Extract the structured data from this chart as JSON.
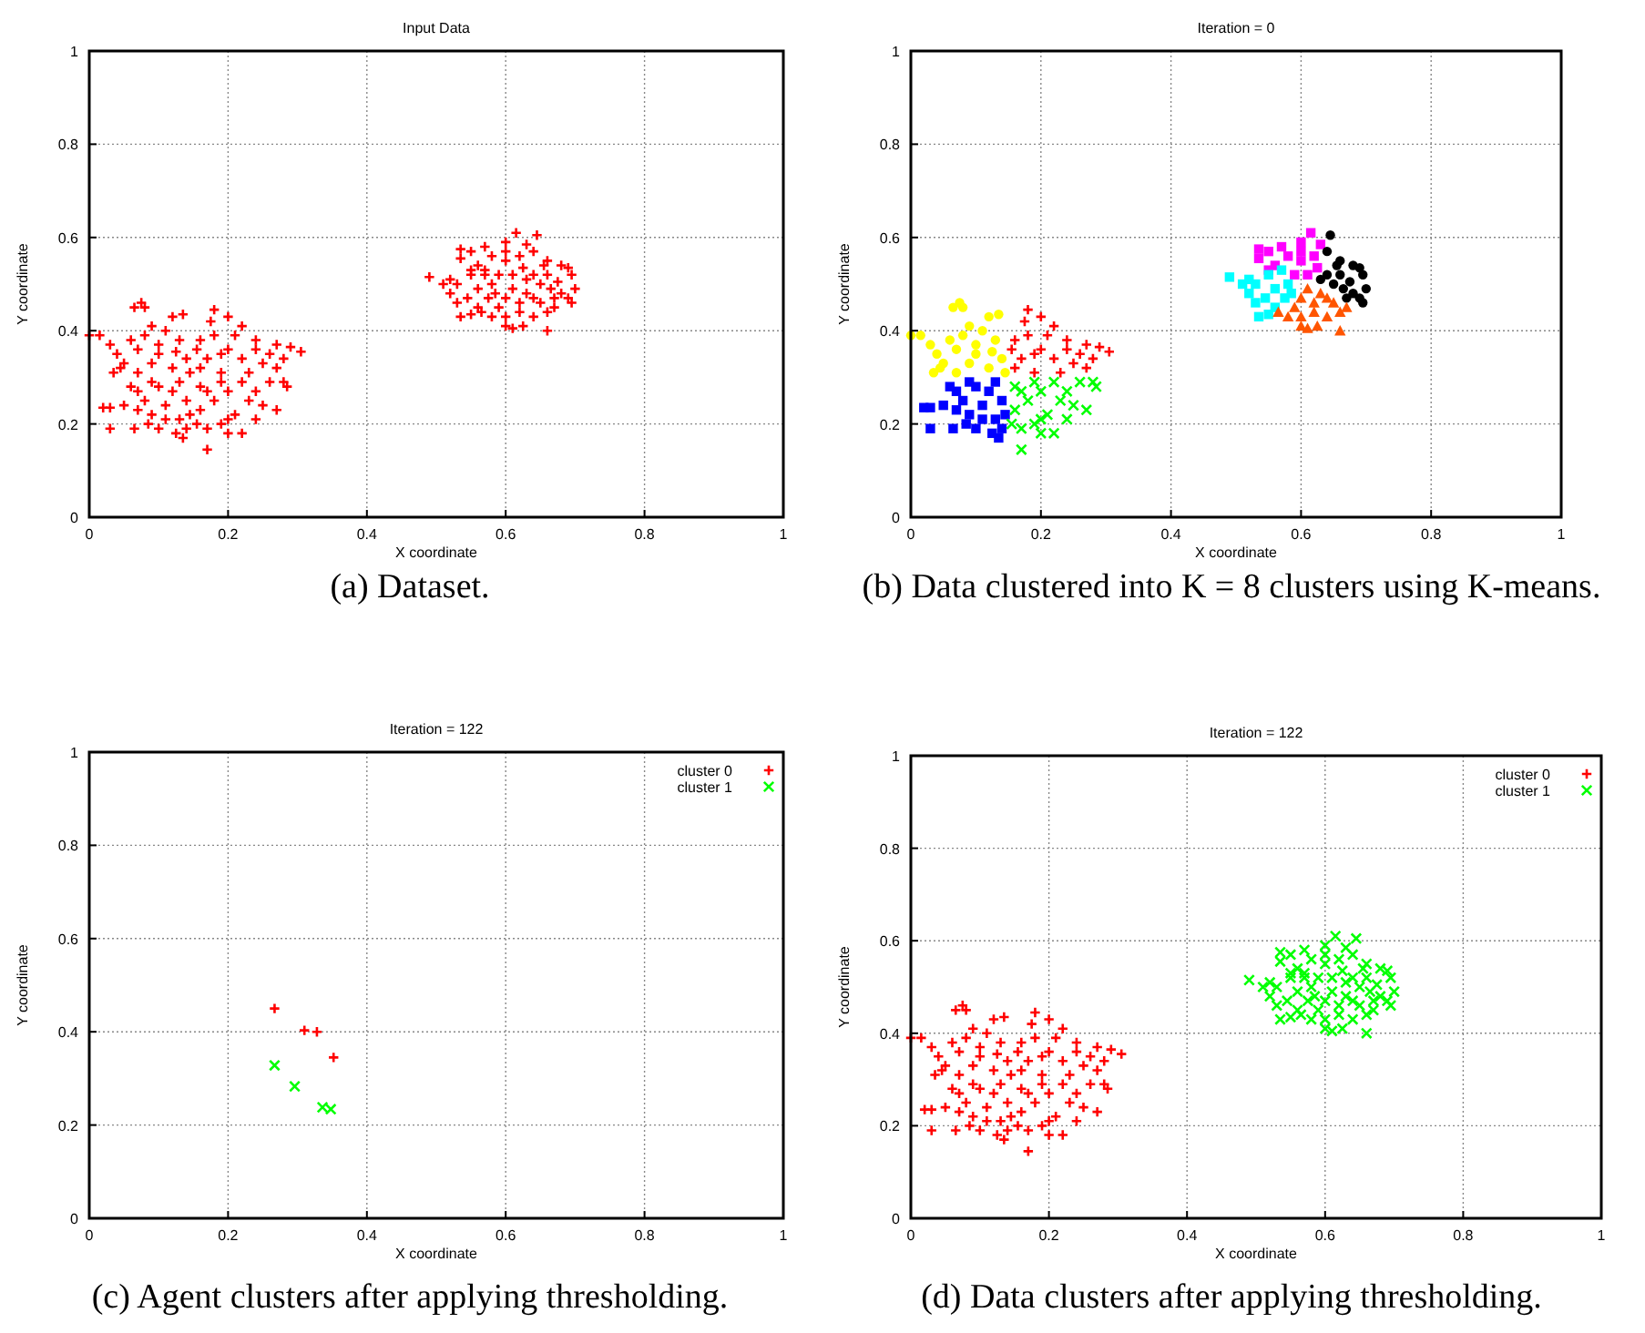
{
  "chart_data": [
    {
      "type": "scatter",
      "title": "Input Data",
      "xlabel": "X coordinate",
      "ylabel": "Y coordinate",
      "annotations": [
        "(a) Dataset."
      ],
      "xlim": [
        0,
        1
      ],
      "ylim": [
        0,
        1
      ],
      "xticks": [
        0,
        0.2,
        0.4,
        0.6,
        0.8,
        1
      ],
      "yticks": [
        0,
        0.2,
        0.4,
        0.6,
        0.8,
        1
      ],
      "grid": true,
      "marker": "plus",
      "color": "#ff0000",
      "x": [
        0.0,
        0.015,
        0.03,
        0.035,
        0.05,
        0.065,
        0.075,
        0.08,
        0.09,
        0.12,
        0.135,
        0.11,
        0.06,
        0.04,
        0.07,
        0.1,
        0.13,
        0.14,
        0.12,
        0.09,
        0.07,
        0.1,
        0.145,
        0.125,
        0.08,
        0.045,
        0.18,
        0.2,
        0.22,
        0.24,
        0.27,
        0.29,
        0.305,
        0.26,
        0.25,
        0.22,
        0.2,
        0.18,
        0.17,
        0.16,
        0.19,
        0.23,
        0.28,
        0.16,
        0.21,
        0.175,
        0.24,
        0.19,
        0.155,
        0.27,
        0.02,
        0.03,
        0.03,
        0.065,
        0.085,
        0.1,
        0.125,
        0.135,
        0.14,
        0.05,
        0.07,
        0.06,
        0.09,
        0.11,
        0.13,
        0.08,
        0.1,
        0.12,
        0.14,
        0.145,
        0.07,
        0.09,
        0.13,
        0.11,
        0.17,
        0.2,
        0.22,
        0.27,
        0.28,
        0.285,
        0.26,
        0.24,
        0.25,
        0.23,
        0.21,
        0.19,
        0.17,
        0.16,
        0.18,
        0.2,
        0.22,
        0.16,
        0.19,
        0.2,
        0.155,
        0.24,
        0.17,
        0.535,
        0.535,
        0.55,
        0.57,
        0.6,
        0.615,
        0.63,
        0.58,
        0.6,
        0.56,
        0.62,
        0.59,
        0.61,
        0.57,
        0.55,
        0.6,
        0.625,
        0.645,
        0.64,
        0.66,
        0.68,
        0.69,
        0.695,
        0.7,
        0.69,
        0.695,
        0.68,
        0.665,
        0.65,
        0.64,
        0.63,
        0.66,
        0.67,
        0.655,
        0.675,
        0.49,
        0.51,
        0.52,
        0.53,
        0.535,
        0.55,
        0.53,
        0.55,
        0.57,
        0.56,
        0.575,
        0.58,
        0.545,
        0.52,
        0.585,
        0.56,
        0.565,
        0.58,
        0.6,
        0.61,
        0.625,
        0.66,
        0.66,
        0.67,
        0.65,
        0.63,
        0.61,
        0.6,
        0.59,
        0.62,
        0.64,
        0.6,
        0.62,
        0.64
      ],
      "values": [
        0.39,
        0.39,
        0.37,
        0.31,
        0.33,
        0.45,
        0.46,
        0.45,
        0.41,
        0.43,
        0.435,
        0.4,
        0.38,
        0.35,
        0.36,
        0.37,
        0.38,
        0.34,
        0.32,
        0.33,
        0.31,
        0.35,
        0.31,
        0.355,
        0.39,
        0.32,
        0.445,
        0.43,
        0.41,
        0.38,
        0.37,
        0.365,
        0.355,
        0.35,
        0.33,
        0.34,
        0.36,
        0.39,
        0.34,
        0.32,
        0.31,
        0.31,
        0.34,
        0.38,
        0.39,
        0.42,
        0.36,
        0.35,
        0.36,
        0.32,
        0.235,
        0.235,
        0.19,
        0.19,
        0.2,
        0.19,
        0.18,
        0.17,
        0.19,
        0.24,
        0.27,
        0.28,
        0.22,
        0.24,
        0.21,
        0.25,
        0.28,
        0.27,
        0.25,
        0.22,
        0.23,
        0.29,
        0.29,
        0.21,
        0.145,
        0.18,
        0.18,
        0.23,
        0.29,
        0.28,
        0.29,
        0.27,
        0.24,
        0.25,
        0.22,
        0.2,
        0.19,
        0.23,
        0.25,
        0.27,
        0.29,
        0.28,
        0.29,
        0.21,
        0.2,
        0.21,
        0.27,
        0.575,
        0.555,
        0.57,
        0.58,
        0.59,
        0.61,
        0.585,
        0.56,
        0.55,
        0.54,
        0.56,
        0.52,
        0.52,
        0.52,
        0.53,
        0.57,
        0.535,
        0.605,
        0.57,
        0.55,
        0.54,
        0.535,
        0.52,
        0.49,
        0.47,
        0.46,
        0.48,
        0.49,
        0.5,
        0.52,
        0.51,
        0.52,
        0.47,
        0.54,
        0.505,
        0.515,
        0.5,
        0.48,
        0.46,
        0.43,
        0.435,
        0.5,
        0.52,
        0.53,
        0.49,
        0.47,
        0.5,
        0.47,
        0.51,
        0.48,
        0.45,
        0.44,
        0.43,
        0.41,
        0.405,
        0.41,
        0.4,
        0.44,
        0.45,
        0.46,
        0.48,
        0.49,
        0.47,
        0.45,
        0.44,
        0.43,
        0.43,
        0.46,
        0.47
      ]
    },
    {
      "type": "scatter",
      "title": "Iteration = 0",
      "xlabel": "X coordinate",
      "ylabel": "Y coordinate",
      "annotations": [
        "(b) Data clustered into K = 8 clusters using K-means."
      ],
      "xlim": [
        0,
        1
      ],
      "ylim": [
        0,
        1
      ],
      "xticks": [
        0,
        0.2,
        0.4,
        0.6,
        0.8,
        1
      ],
      "yticks": [
        0,
        0.2,
        0.4,
        0.6,
        0.8,
        1
      ],
      "grid": true,
      "series": [
        {
          "color": "#ffff00",
          "marker": "circle",
          "x": [
            0.0,
            0.015,
            0.03,
            0.035,
            0.05,
            0.065,
            0.075,
            0.08,
            0.09,
            0.12,
            0.135,
            0.11,
            0.06,
            0.04,
            0.07,
            0.1,
            0.13,
            0.14,
            0.12,
            0.09,
            0.07,
            0.1,
            0.145,
            0.125,
            0.08,
            0.045
          ],
          "values": [
            0.39,
            0.39,
            0.37,
            0.31,
            0.33,
            0.45,
            0.46,
            0.45,
            0.41,
            0.43,
            0.435,
            0.4,
            0.38,
            0.35,
            0.36,
            0.37,
            0.38,
            0.34,
            0.32,
            0.33,
            0.31,
            0.35,
            0.31,
            0.355,
            0.39,
            0.32
          ]
        },
        {
          "color": "#ff0000",
          "marker": "plus",
          "x": [
            0.18,
            0.2,
            0.22,
            0.24,
            0.27,
            0.29,
            0.305,
            0.26,
            0.25,
            0.22,
            0.2,
            0.18,
            0.17,
            0.16,
            0.19,
            0.23,
            0.28,
            0.16,
            0.21,
            0.175,
            0.24,
            0.19,
            0.155,
            0.27
          ],
          "values": [
            0.445,
            0.43,
            0.41,
            0.38,
            0.37,
            0.365,
            0.355,
            0.35,
            0.33,
            0.34,
            0.36,
            0.39,
            0.34,
            0.32,
            0.31,
            0.31,
            0.34,
            0.38,
            0.39,
            0.42,
            0.36,
            0.35,
            0.36,
            0.32
          ]
        },
        {
          "color": "#0000ff",
          "marker": "square",
          "x": [
            0.02,
            0.03,
            0.03,
            0.065,
            0.085,
            0.1,
            0.125,
            0.135,
            0.14,
            0.05,
            0.07,
            0.06,
            0.09,
            0.11,
            0.13,
            0.08,
            0.1,
            0.12,
            0.14,
            0.145,
            0.07,
            0.09,
            0.13,
            0.11
          ],
          "values": [
            0.235,
            0.235,
            0.19,
            0.19,
            0.2,
            0.19,
            0.18,
            0.17,
            0.19,
            0.24,
            0.27,
            0.28,
            0.22,
            0.24,
            0.21,
            0.25,
            0.28,
            0.27,
            0.25,
            0.22,
            0.23,
            0.29,
            0.29,
            0.21
          ]
        },
        {
          "color": "#00ff00",
          "marker": "cross",
          "x": [
            0.17,
            0.2,
            0.22,
            0.27,
            0.28,
            0.285,
            0.26,
            0.24,
            0.25,
            0.23,
            0.21,
            0.19,
            0.17,
            0.16,
            0.18,
            0.2,
            0.22,
            0.16,
            0.19,
            0.2,
            0.155,
            0.24,
            0.17
          ],
          "values": [
            0.145,
            0.18,
            0.18,
            0.23,
            0.29,
            0.28,
            0.29,
            0.27,
            0.24,
            0.25,
            0.22,
            0.2,
            0.19,
            0.23,
            0.25,
            0.27,
            0.29,
            0.28,
            0.29,
            0.21,
            0.2,
            0.21,
            0.27
          ]
        },
        {
          "color": "#ff00ff",
          "marker": "square",
          "x": [
            0.535,
            0.535,
            0.55,
            0.57,
            0.6,
            0.615,
            0.63,
            0.58,
            0.6,
            0.56,
            0.62,
            0.59,
            0.61,
            0.55,
            0.6,
            0.625
          ],
          "values": [
            0.575,
            0.555,
            0.57,
            0.58,
            0.59,
            0.61,
            0.585,
            0.56,
            0.55,
            0.54,
            0.56,
            0.52,
            0.52,
            0.53,
            0.57,
            0.535
          ]
        },
        {
          "color": "#000000",
          "marker": "circle",
          "x": [
            0.645,
            0.64,
            0.66,
            0.68,
            0.69,
            0.695,
            0.7,
            0.69,
            0.695,
            0.68,
            0.665,
            0.65,
            0.64,
            0.63,
            0.66,
            0.67,
            0.655,
            0.675
          ],
          "values": [
            0.605,
            0.57,
            0.55,
            0.54,
            0.535,
            0.52,
            0.49,
            0.47,
            0.46,
            0.48,
            0.49,
            0.5,
            0.52,
            0.51,
            0.52,
            0.47,
            0.54,
            0.505
          ]
        },
        {
          "color": "#00ffff",
          "marker": "square",
          "x": [
            0.49,
            0.51,
            0.52,
            0.53,
            0.535,
            0.55,
            0.53,
            0.55,
            0.57,
            0.56,
            0.575,
            0.58,
            0.545,
            0.52,
            0.585,
            0.56
          ],
          "values": [
            0.515,
            0.5,
            0.48,
            0.46,
            0.43,
            0.435,
            0.5,
            0.52,
            0.53,
            0.49,
            0.47,
            0.5,
            0.47,
            0.51,
            0.48,
            0.45
          ]
        },
        {
          "color": "#ff5500",
          "marker": "triangle",
          "x": [
            0.565,
            0.58,
            0.6,
            0.61,
            0.625,
            0.66,
            0.66,
            0.67,
            0.65,
            0.63,
            0.61,
            0.6,
            0.59,
            0.62,
            0.64,
            0.6,
            0.62,
            0.64
          ],
          "values": [
            0.44,
            0.43,
            0.41,
            0.405,
            0.41,
            0.4,
            0.44,
            0.45,
            0.46,
            0.48,
            0.49,
            0.47,
            0.45,
            0.44,
            0.43,
            0.43,
            0.46,
            0.47
          ]
        }
      ]
    },
    {
      "type": "scatter",
      "title": "Iteration = 122",
      "xlabel": "X coordinate",
      "ylabel": "Y coordinate",
      "annotations": [
        "(c) Agent clusters after applying thresholding."
      ],
      "xlim": [
        0,
        1
      ],
      "ylim": [
        0,
        1
      ],
      "xticks": [
        0,
        0.2,
        0.4,
        0.6,
        0.8,
        1
      ],
      "yticks": [
        0,
        0.2,
        0.4,
        0.6,
        0.8,
        1
      ],
      "grid": true,
      "legend": "top right",
      "series": [
        {
          "name": "cluster 0",
          "color": "#ff0000",
          "marker": "plus",
          "x": [
            0.267,
            0.31,
            0.328,
            0.352
          ],
          "values": [
            0.45,
            0.403,
            0.4,
            0.345
          ]
        },
        {
          "name": "cluster 1",
          "color": "#00ff00",
          "marker": "cross",
          "x": [
            0.267,
            0.296,
            0.336,
            0.348
          ],
          "values": [
            0.328,
            0.283,
            0.238,
            0.234
          ]
        }
      ]
    },
    {
      "type": "scatter",
      "title": "Iteration = 122",
      "xlabel": "X coordinate",
      "ylabel": "Y coordinate",
      "annotations": [
        "(d) Data clusters after applying thresholding."
      ],
      "xlim": [
        0,
        1
      ],
      "ylim": [
        0,
        1
      ],
      "xticks": [
        0,
        0.2,
        0.4,
        0.6,
        0.8,
        1
      ],
      "yticks": [
        0,
        0.2,
        0.4,
        0.6,
        0.8,
        1
      ],
      "grid": true,
      "legend": "top right",
      "series": [
        {
          "name": "cluster 0",
          "color": "#ff0000",
          "marker": "plus",
          "x": [
            0.0,
            0.015,
            0.03,
            0.035,
            0.05,
            0.065,
            0.075,
            0.08,
            0.09,
            0.12,
            0.135,
            0.11,
            0.06,
            0.04,
            0.07,
            0.1,
            0.13,
            0.14,
            0.12,
            0.09,
            0.07,
            0.1,
            0.145,
            0.125,
            0.08,
            0.045,
            0.18,
            0.2,
            0.22,
            0.24,
            0.27,
            0.29,
            0.305,
            0.26,
            0.25,
            0.22,
            0.2,
            0.18,
            0.17,
            0.16,
            0.19,
            0.23,
            0.28,
            0.16,
            0.21,
            0.175,
            0.24,
            0.19,
            0.155,
            0.27,
            0.02,
            0.03,
            0.03,
            0.065,
            0.085,
            0.1,
            0.125,
            0.135,
            0.14,
            0.05,
            0.07,
            0.06,
            0.09,
            0.11,
            0.13,
            0.08,
            0.1,
            0.12,
            0.14,
            0.145,
            0.07,
            0.09,
            0.13,
            0.11,
            0.17,
            0.2,
            0.22,
            0.27,
            0.28,
            0.285,
            0.26,
            0.24,
            0.25,
            0.23,
            0.21,
            0.19,
            0.17,
            0.16,
            0.18,
            0.2,
            0.22,
            0.16,
            0.19,
            0.2,
            0.155,
            0.24,
            0.17
          ],
          "values": [
            0.39,
            0.39,
            0.37,
            0.31,
            0.33,
            0.45,
            0.46,
            0.45,
            0.41,
            0.43,
            0.435,
            0.4,
            0.38,
            0.35,
            0.36,
            0.37,
            0.38,
            0.34,
            0.32,
            0.33,
            0.31,
            0.35,
            0.31,
            0.355,
            0.39,
            0.32,
            0.445,
            0.43,
            0.41,
            0.38,
            0.37,
            0.365,
            0.355,
            0.35,
            0.33,
            0.34,
            0.36,
            0.39,
            0.34,
            0.32,
            0.31,
            0.31,
            0.34,
            0.38,
            0.39,
            0.42,
            0.36,
            0.35,
            0.36,
            0.32,
            0.235,
            0.235,
            0.19,
            0.19,
            0.2,
            0.19,
            0.18,
            0.17,
            0.19,
            0.24,
            0.27,
            0.28,
            0.22,
            0.24,
            0.21,
            0.25,
            0.28,
            0.27,
            0.25,
            0.22,
            0.23,
            0.29,
            0.29,
            0.21,
            0.145,
            0.18,
            0.18,
            0.23,
            0.29,
            0.28,
            0.29,
            0.27,
            0.24,
            0.25,
            0.22,
            0.2,
            0.19,
            0.23,
            0.25,
            0.27,
            0.29,
            0.28,
            0.29,
            0.21,
            0.2,
            0.21,
            0.27
          ]
        },
        {
          "name": "cluster 1",
          "color": "#00ff00",
          "marker": "cross",
          "x": [
            0.535,
            0.535,
            0.55,
            0.57,
            0.6,
            0.615,
            0.63,
            0.58,
            0.6,
            0.56,
            0.62,
            0.59,
            0.61,
            0.57,
            0.55,
            0.6,
            0.625,
            0.645,
            0.64,
            0.66,
            0.68,
            0.69,
            0.695,
            0.7,
            0.69,
            0.695,
            0.68,
            0.665,
            0.65,
            0.64,
            0.63,
            0.66,
            0.67,
            0.655,
            0.675,
            0.49,
            0.51,
            0.52,
            0.53,
            0.535,
            0.55,
            0.53,
            0.55,
            0.57,
            0.56,
            0.575,
            0.58,
            0.545,
            0.52,
            0.585,
            0.56,
            0.565,
            0.58,
            0.6,
            0.61,
            0.625,
            0.66,
            0.66,
            0.67,
            0.65,
            0.63,
            0.61,
            0.6,
            0.59,
            0.62,
            0.64,
            0.6,
            0.62,
            0.64
          ],
          "values": [
            0.575,
            0.555,
            0.57,
            0.58,
            0.59,
            0.61,
            0.585,
            0.56,
            0.55,
            0.54,
            0.56,
            0.52,
            0.52,
            0.52,
            0.53,
            0.57,
            0.535,
            0.605,
            0.57,
            0.55,
            0.54,
            0.535,
            0.52,
            0.49,
            0.47,
            0.46,
            0.48,
            0.49,
            0.5,
            0.52,
            0.51,
            0.52,
            0.47,
            0.54,
            0.505,
            0.515,
            0.5,
            0.48,
            0.46,
            0.43,
            0.435,
            0.5,
            0.52,
            0.53,
            0.49,
            0.47,
            0.5,
            0.47,
            0.51,
            0.48,
            0.45,
            0.44,
            0.43,
            0.41,
            0.405,
            0.41,
            0.4,
            0.44,
            0.45,
            0.46,
            0.48,
            0.49,
            0.47,
            0.45,
            0.44,
            0.43,
            0.43,
            0.46,
            0.47
          ]
        }
      ]
    }
  ]
}
